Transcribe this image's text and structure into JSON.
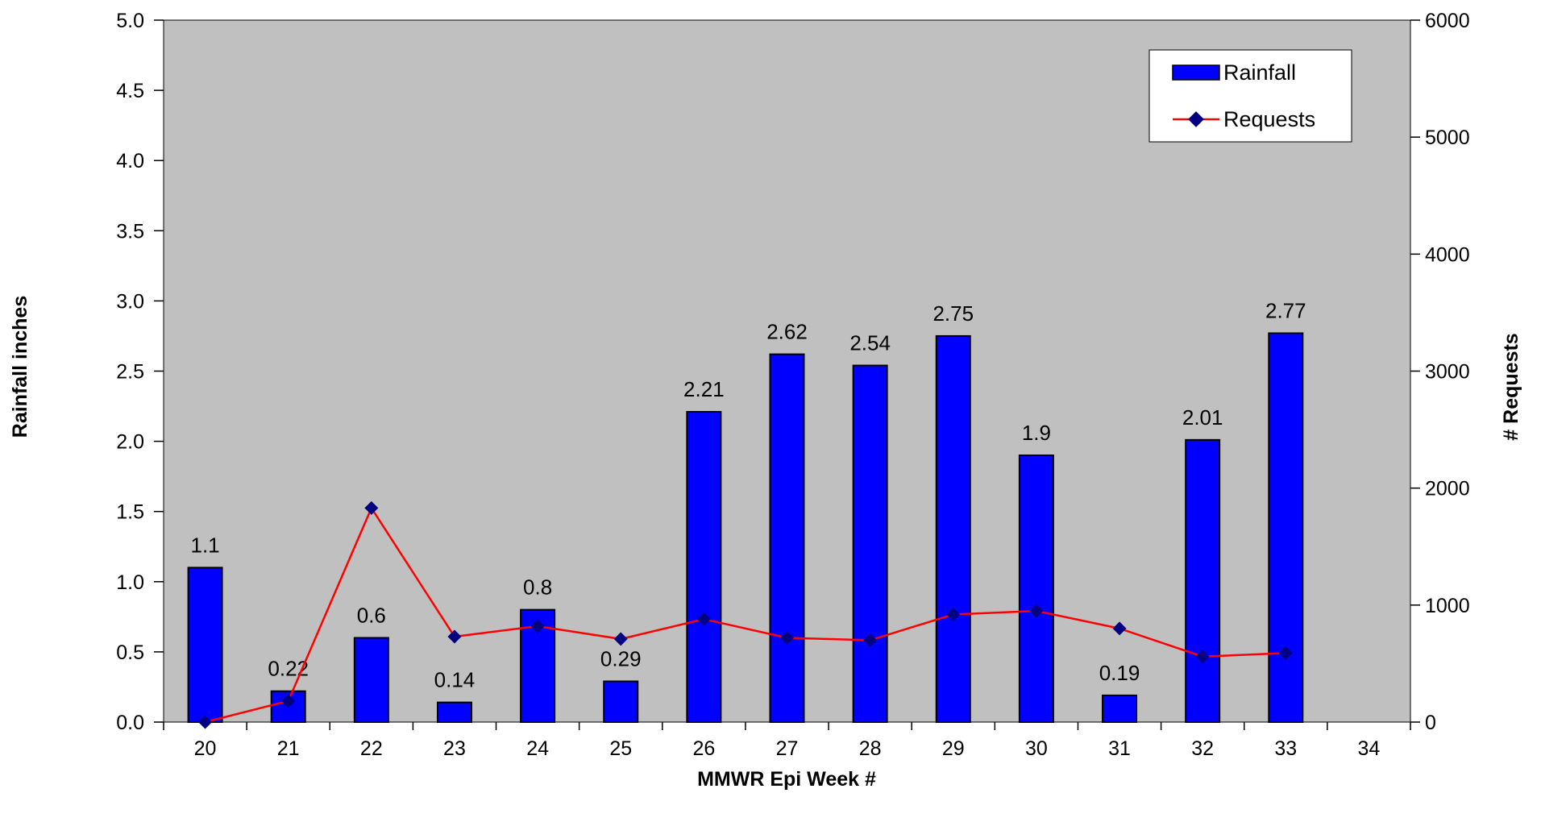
{
  "chart_data": {
    "type": "bar",
    "title": "",
    "xlabel": "MMWR Epi Week #",
    "ylabel": "Rainfall inches",
    "y2label": "# Requests",
    "categories": [
      "20",
      "21",
      "22",
      "23",
      "24",
      "25",
      "26",
      "27",
      "28",
      "29",
      "30",
      "31",
      "32",
      "33",
      "34"
    ],
    "ylim": [
      0,
      5
    ],
    "y2lim": [
      0,
      6000
    ],
    "yticks": [
      "0.0",
      "0.5",
      "1.0",
      "1.5",
      "2.0",
      "2.5",
      "3.0",
      "3.5",
      "4.0",
      "4.5",
      "5.0"
    ],
    "y2ticks": [
      "0",
      "1000",
      "2000",
      "3000",
      "4000",
      "5000",
      "6000"
    ],
    "grid": false,
    "legend_position": "top-right",
    "series": [
      {
        "name": "Rainfall",
        "type": "bar",
        "axis": "left",
        "values": [
          1.1,
          0.22,
          0.6,
          0.14,
          0.8,
          0.29,
          2.21,
          2.62,
          2.54,
          2.75,
          1.9,
          0.19,
          2.01,
          2.77,
          null
        ],
        "labels": [
          "1.1",
          "0.22",
          "0.6",
          "0.14",
          "0.8",
          "0.29",
          "2.21",
          "2.62",
          "2.54",
          "2.75",
          "1.9",
          "0.19",
          "2.01",
          "2.77",
          ""
        ],
        "color": "#0000ff"
      },
      {
        "name": "Requests",
        "type": "line",
        "axis": "right",
        "values": [
          0,
          180,
          1830,
          730,
          820,
          710,
          880,
          720,
          700,
          920,
          950,
          800,
          560,
          590,
          null
        ],
        "color": "#ff0000",
        "marker_color": "#000080"
      }
    ],
    "colors": {
      "plot_background": "#c0c0c0",
      "axis": "#000000"
    }
  }
}
